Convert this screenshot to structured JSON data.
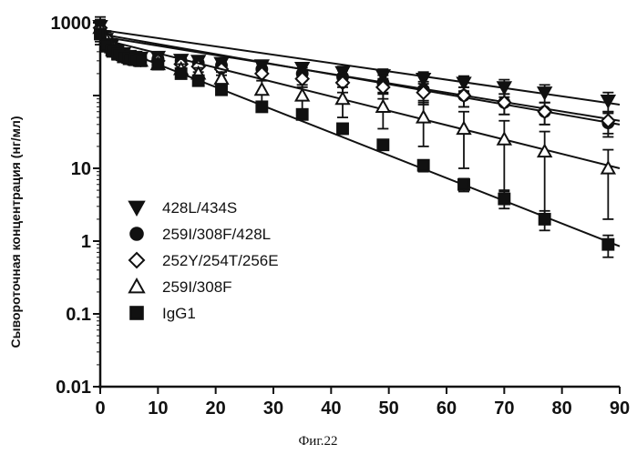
{
  "chart_data": {
    "type": "scatter",
    "title": "",
    "xlabel": "",
    "ylabel": "Сывороточная концентрация (нг/мл)",
    "caption": "Фиг.22",
    "xlim": [
      0,
      90
    ],
    "ylim": [
      0.01,
      1000
    ],
    "y_scale": "log",
    "x_ticks": [
      0,
      10,
      20,
      30,
      40,
      50,
      60,
      70,
      80,
      90
    ],
    "y_ticks": [
      0.01,
      0.1,
      1,
      10,
      1000
    ],
    "y_tick_labels": [
      "0.01",
      "0.1",
      "1",
      "10",
      "1000"
    ],
    "grid": false,
    "legend_position": "left-middle",
    "series": [
      {
        "name": "428L/434S",
        "marker": "triangle-down",
        "color": "#111111",
        "x": [
          0,
          1,
          2,
          3,
          4,
          5,
          6,
          7,
          10,
          14,
          17,
          21,
          28,
          35,
          42,
          49,
          56,
          63,
          70,
          77,
          88
        ],
        "y": [
          900,
          600,
          500,
          420,
          380,
          350,
          340,
          330,
          340,
          310,
          300,
          280,
          260,
          240,
          210,
          190,
          170,
          150,
          130,
          110,
          85
        ],
        "err": [
          300,
          150,
          100,
          80,
          60,
          50,
          40,
          40,
          40,
          40,
          40,
          40,
          40,
          40,
          40,
          40,
          40,
          35,
          35,
          30,
          25
        ],
        "fit": [
          [
            0,
            800
          ],
          [
            90,
            75
          ]
        ]
      },
      {
        "name": "259I/308F/428L",
        "marker": "circle",
        "color": "#111111",
        "x": [
          0,
          1,
          2,
          3,
          4,
          5,
          6,
          7,
          10,
          14,
          17,
          21,
          28,
          35,
          42,
          49,
          56,
          63,
          70,
          77,
          88
        ],
        "y": [
          800,
          600,
          480,
          420,
          380,
          350,
          330,
          320,
          320,
          300,
          280,
          260,
          230,
          200,
          180,
          150,
          120,
          100,
          80,
          60,
          42
        ],
        "err": [
          250,
          150,
          100,
          80,
          60,
          50,
          40,
          40,
          40,
          40,
          40,
          40,
          40,
          40,
          40,
          40,
          35,
          30,
          25,
          20,
          15
        ],
        "fit": [
          [
            0,
            700
          ],
          [
            90,
            40
          ]
        ]
      },
      {
        "name": "252Y/254T/256E",
        "marker": "diamond",
        "color": "#111111",
        "x": [
          0,
          1,
          2,
          3,
          4,
          5,
          6,
          7,
          10,
          14,
          17,
          21,
          28,
          35,
          42,
          49,
          56,
          63,
          70,
          77,
          88
        ],
        "y": [
          850,
          620,
          480,
          410,
          370,
          340,
          320,
          310,
          300,
          270,
          250,
          230,
          200,
          170,
          150,
          130,
          110,
          100,
          80,
          60,
          45
        ],
        "err": [
          250,
          150,
          100,
          80,
          60,
          50,
          40,
          40,
          40,
          40,
          40,
          40,
          40,
          40,
          40,
          40,
          35,
          30,
          25,
          20,
          15
        ],
        "fit": [
          [
            0,
            650
          ],
          [
            90,
            45
          ]
        ]
      },
      {
        "name": "259I/308F",
        "marker": "triangle-up",
        "color": "#111111",
        "x": [
          0,
          1,
          2,
          3,
          4,
          5,
          6,
          7,
          10,
          14,
          17,
          21,
          28,
          35,
          42,
          49,
          56,
          63,
          70,
          77,
          88
        ],
        "y": [
          850,
          600,
          460,
          400,
          360,
          330,
          310,
          300,
          270,
          230,
          200,
          170,
          120,
          100,
          90,
          70,
          50,
          35,
          25,
          17,
          10
        ],
        "err": [
          250,
          150,
          100,
          80,
          60,
          50,
          40,
          40,
          40,
          40,
          40,
          40,
          40,
          40,
          40,
          35,
          30,
          25,
          20,
          15,
          8
        ],
        "fit": [
          [
            0,
            600
          ],
          [
            90,
            10
          ]
        ]
      },
      {
        "name": "IgG1",
        "marker": "square",
        "color": "#111111",
        "x": [
          0,
          1,
          2,
          3,
          4,
          5,
          6,
          7,
          10,
          14,
          17,
          21,
          28,
          35,
          42,
          49,
          56,
          63,
          70,
          77,
          88
        ],
        "y": [
          700,
          500,
          420,
          370,
          340,
          320,
          310,
          300,
          270,
          200,
          160,
          120,
          70,
          55,
          35,
          21,
          11,
          6,
          3.8,
          2,
          0.9
        ],
        "err": [
          200,
          100,
          80,
          60,
          50,
          40,
          40,
          40,
          30,
          25,
          20,
          15,
          10,
          8,
          5,
          3,
          2,
          1.2,
          1,
          0.6,
          0.3
        ],
        "fit": [
          [
            0,
            550
          ],
          [
            90,
            0.85
          ]
        ]
      }
    ]
  }
}
